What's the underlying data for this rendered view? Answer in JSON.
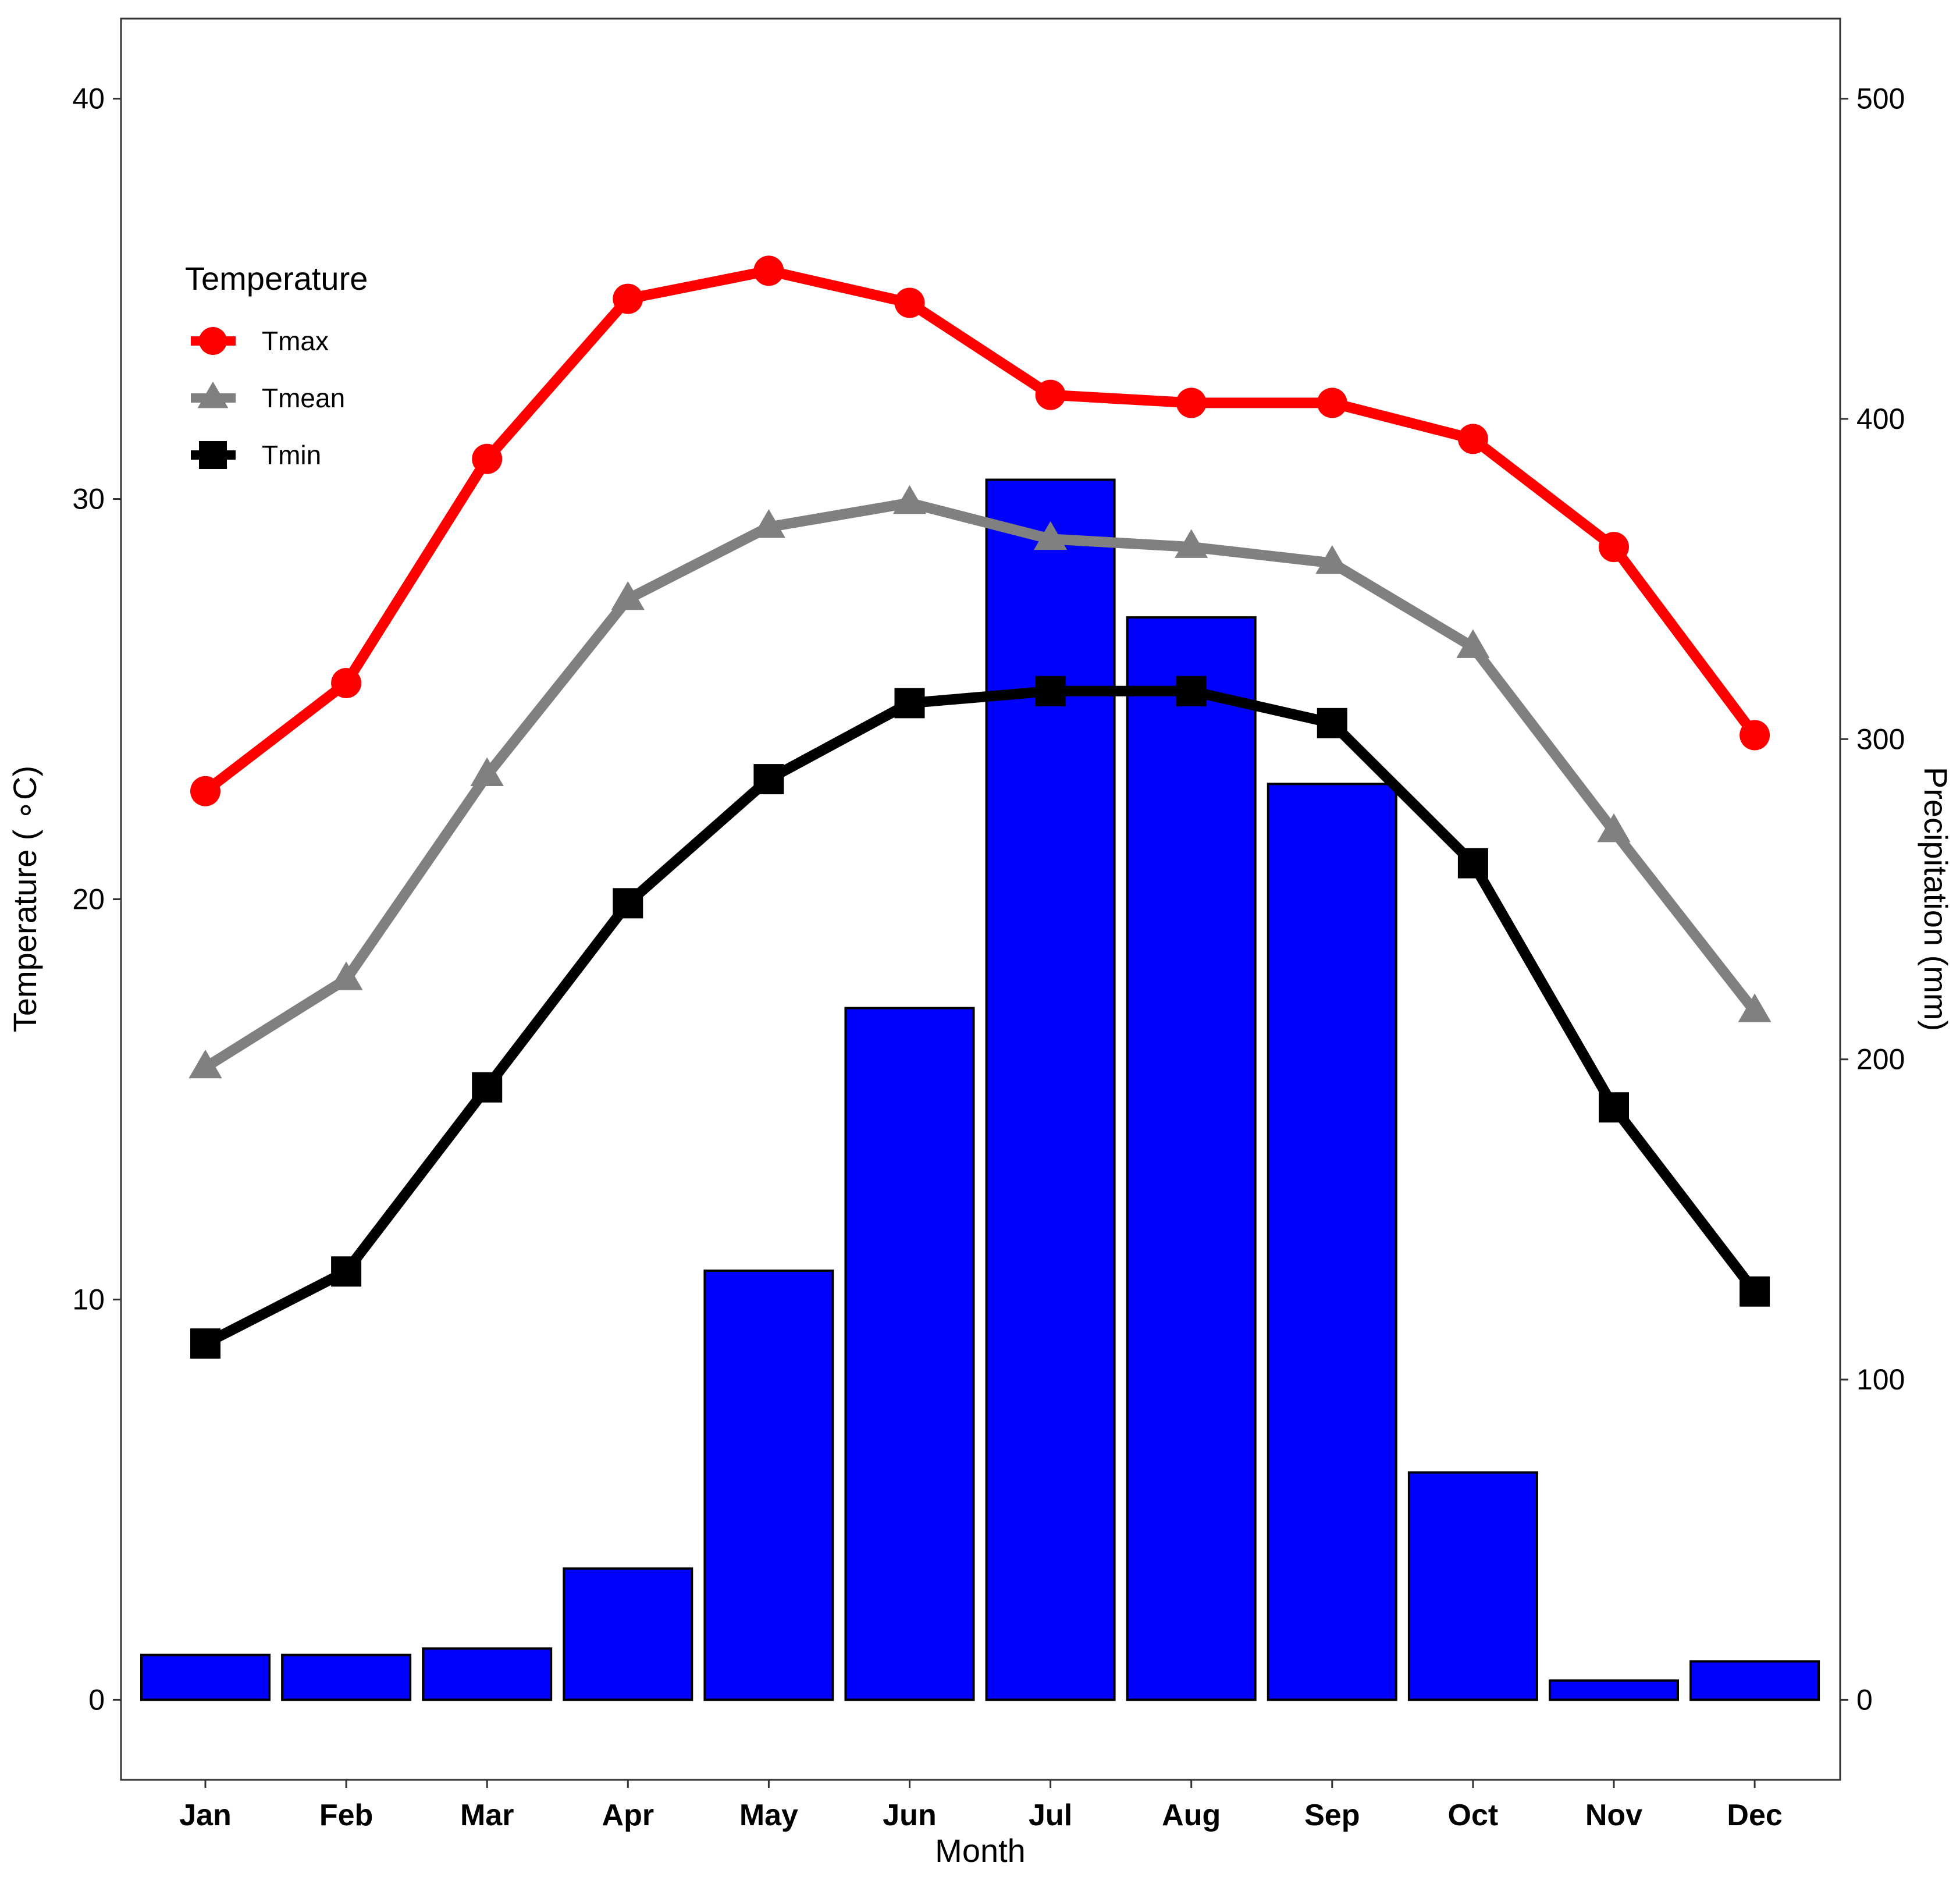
{
  "chart_data": {
    "type": "bar+line",
    "title": "",
    "categories": [
      "Jan",
      "Feb",
      "Mar",
      "Apr",
      "May",
      "Jun",
      "Jul",
      "Aug",
      "Sep",
      "Oct",
      "Nov",
      "Dec"
    ],
    "xlabel": "Month",
    "ylabel": "Temperature ( ∘C)",
    "y2label": "Precipitation (mm)",
    "ylim": [
      -2,
      42
    ],
    "yticks": [
      0,
      10,
      20,
      30,
      40
    ],
    "y2ticks": [
      0,
      100,
      200,
      300,
      400,
      500
    ],
    "y2_scale": 12.5,
    "precipitation": {
      "name": "Precipitation",
      "color": "#0000FF",
      "values": [
        14,
        14,
        16,
        41,
        134,
        216,
        381,
        338,
        286,
        71,
        6,
        12
      ]
    },
    "series": [
      {
        "name": "Tmax",
        "color": "#FF0000",
        "marker": "circle",
        "values": [
          22.7,
          25.4,
          31.0,
          35.0,
          35.7,
          34.9,
          32.6,
          32.4,
          32.4,
          31.5,
          28.8,
          24.1
        ]
      },
      {
        "name": "Tmean",
        "color": "#808080",
        "marker": "triangle",
        "values": [
          15.8,
          18.0,
          23.1,
          27.5,
          29.3,
          29.9,
          29.0,
          28.8,
          28.4,
          26.3,
          21.7,
          17.2
        ]
      },
      {
        "name": "Tmin",
        "color": "#000000",
        "marker": "square",
        "values": [
          8.9,
          10.7,
          15.3,
          19.9,
          23.0,
          24.9,
          25.2,
          25.2,
          24.4,
          20.9,
          14.8,
          10.2
        ]
      }
    ],
    "legend": {
      "title": "Temperature",
      "position": "top-left"
    },
    "grid": false
  }
}
